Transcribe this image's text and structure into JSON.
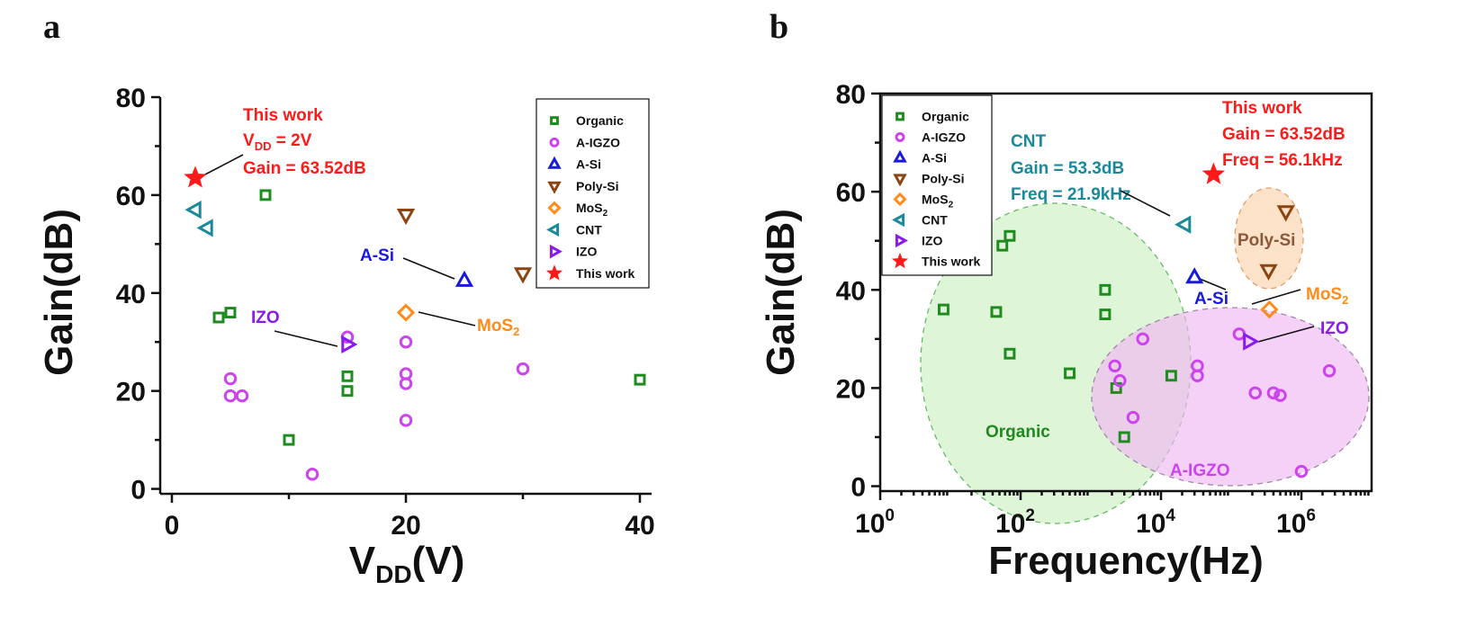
{
  "chart_data": [
    {
      "panel": "a",
      "type": "scatter",
      "xlabel_main": "V",
      "xlabel_sub": "DD",
      "xlabel_tail": "(V)",
      "ylabel": "Gain(dB)",
      "xlim": [
        -1,
        41
      ],
      "ylim": [
        -1,
        80
      ],
      "xticks": [
        0,
        20,
        40
      ],
      "yticks": [
        0,
        20,
        40,
        60,
        80
      ],
      "legend_position": "top-right",
      "series": [
        {
          "name": "Organic",
          "marker": "square",
          "color": "#1e8c1e",
          "points": [
            [
              4,
              35
            ],
            [
              5,
              36
            ],
            [
              8,
              60
            ],
            [
              10,
              10
            ],
            [
              15,
              20
            ],
            [
              15,
              23
            ],
            [
              40,
              22.3
            ]
          ]
        },
        {
          "name": "A-IGZO",
          "marker": "circle",
          "color": "#cc44ee",
          "points": [
            [
              5,
              22.5
            ],
            [
              5,
              19
            ],
            [
              6,
              19
            ],
            [
              12,
              3
            ],
            [
              15,
              31
            ],
            [
              20,
              30
            ],
            [
              20,
              23.5
            ],
            [
              20,
              21.5
            ],
            [
              20,
              14
            ],
            [
              30,
              24.5
            ]
          ]
        },
        {
          "name": "A-Si",
          "marker": "triangle-up",
          "color": "#1a1adc",
          "points": [
            [
              25,
              42.5
            ]
          ]
        },
        {
          "name": "Poly-Si",
          "marker": "triangle-down",
          "color": "#8b4513",
          "points": [
            [
              20,
              56
            ],
            [
              30,
              44
            ]
          ]
        },
        {
          "name": "MoS2",
          "marker": "diamond",
          "color": "#ff8c1a",
          "points": [
            [
              20,
              36
            ]
          ]
        },
        {
          "name": "CNT",
          "marker": "triangle-left",
          "color": "#1a8a9a",
          "points": [
            [
              2,
              57
            ],
            [
              3,
              53.3
            ]
          ]
        },
        {
          "name": "IZO",
          "marker": "triangle-right",
          "color": "#8a1aee",
          "points": [
            [
              15,
              29.5
            ]
          ]
        },
        {
          "name": "This work",
          "marker": "star",
          "color": "#ff1a1a",
          "points": [
            [
              2,
              63.52
            ]
          ]
        }
      ],
      "annotations": {
        "this_work_l1": "This work",
        "this_work_l2_main": "V",
        "this_work_l2_sub": "DD",
        "this_work_l2_tail": " = 2V",
        "this_work_l3": "Gain = 63.52dB",
        "asi": "A-Si",
        "izo": "IZO",
        "mos2_main": "MoS",
        "mos2_sub": "2"
      }
    },
    {
      "panel": "b",
      "type": "scatter",
      "xscale": "log",
      "xlabel": "Frequency(Hz)",
      "ylabel": "Gain(dB)",
      "xlim": [
        1,
        10000000
      ],
      "ylim": [
        -1,
        80
      ],
      "xticks_base": "10",
      "xticks_exp": [
        "0",
        "2",
        "4",
        "6"
      ],
      "yticks": [
        0,
        20,
        40,
        60,
        80
      ],
      "legend_position": "top-left",
      "series": [
        {
          "name": "Organic",
          "marker": "square",
          "color": "#1e8c1e",
          "points": [
            [
              8,
              36
            ],
            [
              45,
              35.5
            ],
            [
              55,
              49
            ],
            [
              70,
              51
            ],
            [
              70,
              27
            ],
            [
              500,
              23
            ],
            [
              1600,
              40
            ],
            [
              1600,
              35
            ],
            [
              2300,
              20
            ],
            [
              3000,
              10
            ],
            [
              14000,
              22.5
            ]
          ]
        },
        {
          "name": "A-IGZO",
          "marker": "circle",
          "color": "#cc44ee",
          "points": [
            [
              2200,
              24.5
            ],
            [
              2600,
              21.5
            ],
            [
              4000,
              14
            ],
            [
              5500,
              30
            ],
            [
              33000,
              24.5
            ],
            [
              33000,
              22.5
            ],
            [
              130000,
              31
            ],
            [
              220000,
              19
            ],
            [
              400000,
              19
            ],
            [
              500000,
              18.5
            ],
            [
              1000000,
              3
            ],
            [
              2500000,
              23.5
            ]
          ]
        },
        {
          "name": "A-Si",
          "marker": "triangle-up",
          "color": "#1a1adc",
          "points": [
            [
              30000,
              42.5
            ]
          ]
        },
        {
          "name": "Poly-Si",
          "marker": "triangle-down",
          "color": "#8b4513",
          "points": [
            [
              340000,
              44
            ],
            [
              600000,
              56
            ]
          ]
        },
        {
          "name": "MoS2",
          "marker": "diamond",
          "color": "#ff8c1a",
          "points": [
            [
              350000,
              36
            ]
          ]
        },
        {
          "name": "CNT",
          "marker": "triangle-left",
          "color": "#1a8a9a",
          "points": [
            [
              21900,
              53.3
            ]
          ]
        },
        {
          "name": "IZO",
          "marker": "triangle-right",
          "color": "#8a1aee",
          "points": [
            [
              180000,
              29.5
            ]
          ]
        },
        {
          "name": "This work",
          "marker": "star",
          "color": "#ff1a1a",
          "points": [
            [
              56100,
              63.52
            ]
          ]
        }
      ],
      "regions": [
        {
          "label": "Organic",
          "color": "#d8f5d0"
        },
        {
          "label": "A-IGZO",
          "color": "#efb8f2"
        },
        {
          "label": "Poly-Si",
          "color": "#fbe2c8"
        }
      ],
      "annotations": {
        "cnt_l1": "CNT",
        "cnt_l2": "Gain = 53.3dB",
        "cnt_l3": "Freq = 21.9kHz",
        "this_work_l1": "This work",
        "this_work_l2": "Gain = 63.52dB",
        "this_work_l3": "Freq = 56.1kHz",
        "poly_si": "Poly-Si",
        "asi": "A-Si",
        "izo": "IZO",
        "mos2_main": "MoS",
        "mos2_sub": "2",
        "organic": "Organic",
        "a_igzo": "A-IGZO"
      }
    }
  ],
  "legend": {
    "items": [
      {
        "label": "Organic",
        "sub": ""
      },
      {
        "label": "A-IGZO",
        "sub": ""
      },
      {
        "label": "A-Si",
        "sub": ""
      },
      {
        "label": "Poly-Si",
        "sub": ""
      },
      {
        "label": "MoS",
        "sub": "2"
      },
      {
        "label": "CNT",
        "sub": ""
      },
      {
        "label": "IZO",
        "sub": ""
      },
      {
        "label": "This work",
        "sub": ""
      }
    ]
  },
  "panels": {
    "a_label": "a",
    "b_label": "b"
  }
}
